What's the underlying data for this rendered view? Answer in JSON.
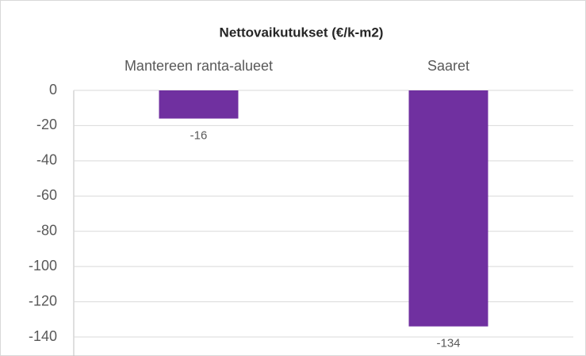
{
  "chart_data": {
    "type": "bar",
    "title": "Nettovaikutukset (€/k-m2)",
    "categories": [
      "Mantereen ranta-alueet",
      "Saaret"
    ],
    "values": [
      -16,
      -134
    ],
    "color": "#7030a0",
    "ylim": [
      -140,
      0
    ],
    "yticks": [
      0,
      -20,
      -40,
      -60,
      -80,
      -100,
      -120,
      -140
    ],
    "grid": true
  }
}
